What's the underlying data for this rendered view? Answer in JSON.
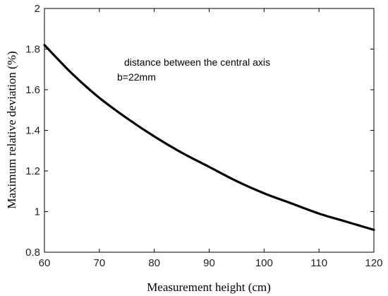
{
  "chart_data": {
    "type": "line",
    "xlabel": "Measurement height (cm)",
    "ylabel": "Maximum relative deviation (%)",
    "xlim": [
      60,
      120
    ],
    "ylim": [
      0.8,
      2
    ],
    "xticks": [
      "60",
      "70",
      "80",
      "90",
      "100",
      "110",
      "120"
    ],
    "yticks": [
      "0.8",
      "1",
      "1.2",
      "1.4",
      "1.6",
      "1.8",
      "2"
    ],
    "grid": false,
    "line_color": "#000000",
    "annotations": [
      "distance between the central axis",
      "b=22mm"
    ],
    "series": [
      {
        "x": [
          60,
          65,
          70,
          75,
          80,
          85,
          90,
          95,
          100,
          105,
          110,
          115,
          120
        ],
        "y": [
          1.82,
          1.68,
          1.56,
          1.46,
          1.37,
          1.29,
          1.22,
          1.15,
          1.09,
          1.04,
          0.99,
          0.95,
          0.91
        ]
      }
    ]
  }
}
